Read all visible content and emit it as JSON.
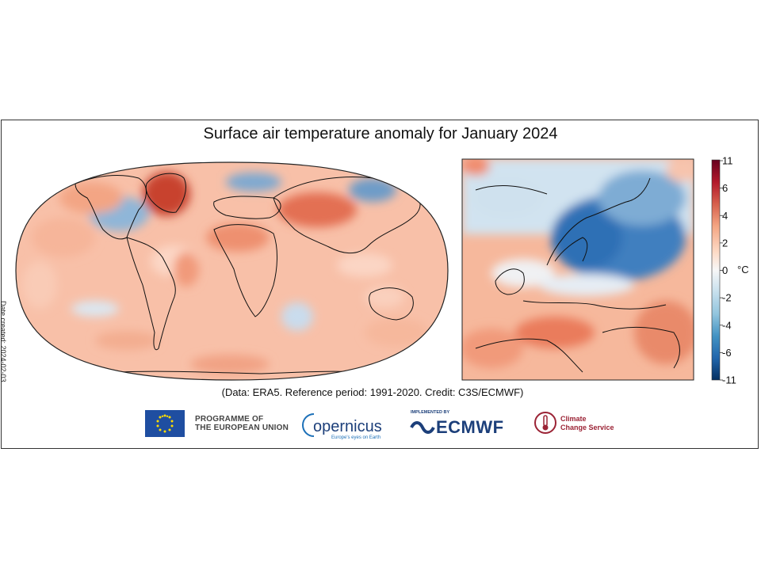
{
  "title": "Surface air temperature anomaly for January 2024",
  "date_created": "Date created: 2024-02-03",
  "credit": "(Data: ERA5.  Reference period: 1991-2020.  Credit: C3S/ECMWF)",
  "colorbar": {
    "unit": "°C",
    "ticks": [
      "11",
      "6",
      "4",
      "2",
      "0",
      "-2",
      "-4",
      "-6",
      "-11"
    ],
    "colors": [
      "#67001f",
      "#b2182b",
      "#d6604d",
      "#f4a582",
      "#fddbc7",
      "#f7f7f7",
      "#d1e5f0",
      "#92c5de",
      "#4393c3",
      "#2166ac",
      "#053061"
    ]
  },
  "logos": {
    "eu_line1": "PROGRAMME OF",
    "eu_line2": "THE EUROPEAN UNION",
    "copernicus": "opernicus",
    "copernicus_tagline": "Europe's eyes on Earth",
    "ecmwf_implemented": "IMPLEMENTED BY",
    "ecmwf": "ECMWF",
    "c3s_line1": "Climate",
    "c3s_line2": "Change Service"
  },
  "maps": {
    "global": {
      "name": "global-map"
    },
    "europe": {
      "name": "europe-map"
    }
  }
}
